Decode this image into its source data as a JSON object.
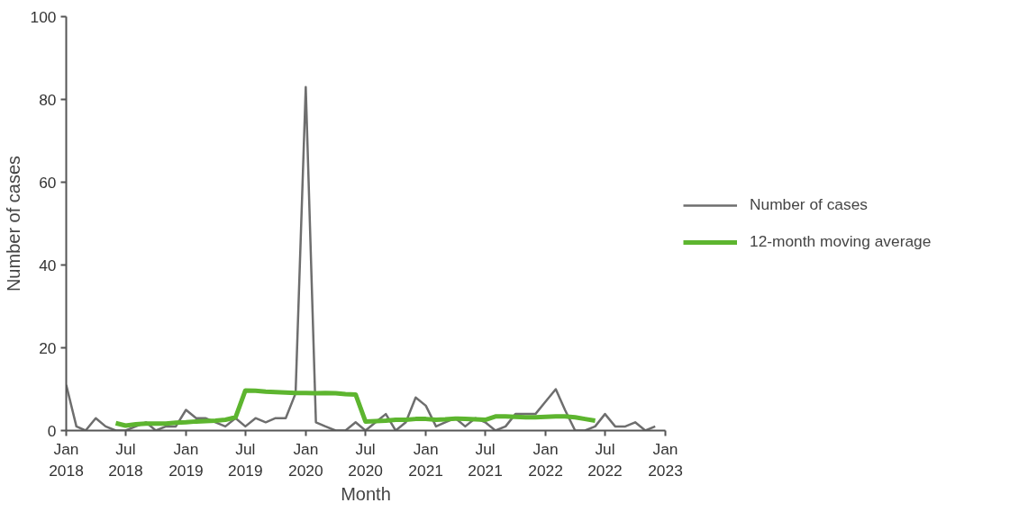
{
  "chart_data": {
    "type": "line",
    "xlabel": "Month",
    "ylabel": "Number of cases",
    "ylim": [
      0,
      100
    ],
    "yticks": [
      0,
      20,
      40,
      60,
      80,
      100
    ],
    "xlim": [
      "2018-01",
      "2023-01"
    ],
    "xticks": [
      {
        "value": "2018-01",
        "label": "Jan\n2018"
      },
      {
        "value": "2018-07",
        "label": "Jul\n2018"
      },
      {
        "value": "2019-01",
        "label": "Jan\n2019"
      },
      {
        "value": "2019-07",
        "label": "Jul\n2019"
      },
      {
        "value": "2020-01",
        "label": "Jan\n2020"
      },
      {
        "value": "2020-07",
        "label": "Jul\n2020"
      },
      {
        "value": "2021-01",
        "label": "Jan\n2021"
      },
      {
        "value": "2021-07",
        "label": "Jul\n2021"
      },
      {
        "value": "2022-01",
        "label": "Jan\n2022"
      },
      {
        "value": "2022-07",
        "label": "Jul\n2022"
      },
      {
        "value": "2023-01",
        "label": "Jan\n2023"
      }
    ],
    "grid": false,
    "legend": "right",
    "marker": "none",
    "line_style": "solid",
    "series": [
      {
        "name": "Number of cases",
        "color": "#6e6e6e",
        "x": [
          "2018-01",
          "2018-02",
          "2018-03",
          "2018-04",
          "2018-05",
          "2018-06",
          "2018-07",
          "2018-08",
          "2018-09",
          "2018-10",
          "2018-11",
          "2018-12",
          "2019-01",
          "2019-02",
          "2019-03",
          "2019-04",
          "2019-05",
          "2019-06",
          "2019-07",
          "2019-08",
          "2019-09",
          "2019-10",
          "2019-11",
          "2019-12",
          "2020-01",
          "2020-02",
          "2020-03",
          "2020-04",
          "2020-05",
          "2020-06",
          "2020-07",
          "2020-08",
          "2020-09",
          "2020-10",
          "2020-11",
          "2020-12",
          "2021-01",
          "2021-02",
          "2021-03",
          "2021-04",
          "2021-05",
          "2021-06",
          "2021-07",
          "2021-08",
          "2021-09",
          "2021-10",
          "2021-11",
          "2021-12",
          "2022-01",
          "2022-02",
          "2022-03",
          "2022-04",
          "2022-05",
          "2022-06",
          "2022-07",
          "2022-08",
          "2022-09",
          "2022-10",
          "2022-11",
          "2022-12"
        ],
        "values": [
          11,
          1,
          0,
          3,
          1,
          0,
          0,
          1,
          2,
          0,
          1,
          1,
          5,
          3,
          3,
          2,
          1,
          3,
          1,
          3,
          2,
          3,
          3,
          9,
          83,
          2,
          1,
          0,
          0,
          2,
          0,
          2,
          4,
          0,
          2,
          8,
          6,
          1,
          2,
          3,
          1,
          3,
          2,
          0,
          1,
          4,
          4,
          4,
          7,
          10,
          5,
          0,
          0,
          1,
          4,
          1,
          1,
          2,
          0,
          1
        ]
      },
      {
        "name": "12-month moving average",
        "color": "#5db52f",
        "x": [
          "2018-06",
          "2018-07",
          "2018-08",
          "2018-09",
          "2018-10",
          "2018-11",
          "2018-12",
          "2019-01",
          "2019-02",
          "2019-03",
          "2019-04",
          "2019-05",
          "2019-06",
          "2019-07",
          "2019-08",
          "2019-09",
          "2019-10",
          "2019-11",
          "2019-12",
          "2020-01",
          "2020-02",
          "2020-03",
          "2020-04",
          "2020-05",
          "2020-06",
          "2020-07",
          "2020-08",
          "2020-09",
          "2020-10",
          "2020-11",
          "2020-12",
          "2021-01",
          "2021-02",
          "2021-03",
          "2021-04",
          "2021-05",
          "2021-06",
          "2021-07",
          "2021-08",
          "2021-09",
          "2021-10",
          "2021-11",
          "2021-12",
          "2022-01",
          "2022-02",
          "2022-03",
          "2022-04",
          "2022-05",
          "2022-06"
        ],
        "values": [
          1.8,
          1.2,
          1.5,
          1.7,
          1.7,
          1.7,
          1.9,
          2.0,
          2.2,
          2.3,
          2.4,
          2.6,
          3.2,
          9.7,
          9.6,
          9.4,
          9.3,
          9.2,
          9.1,
          9.1,
          9.0,
          9.1,
          9.0,
          8.8,
          8.7,
          2.2,
          2.3,
          2.4,
          2.6,
          2.6,
          2.8,
          2.8,
          2.6,
          2.7,
          2.9,
          2.8,
          2.7,
          2.6,
          3.4,
          3.4,
          3.3,
          3.2,
          3.2,
          3.3,
          3.4,
          3.4,
          3.2,
          2.8,
          2.4
        ]
      }
    ]
  }
}
